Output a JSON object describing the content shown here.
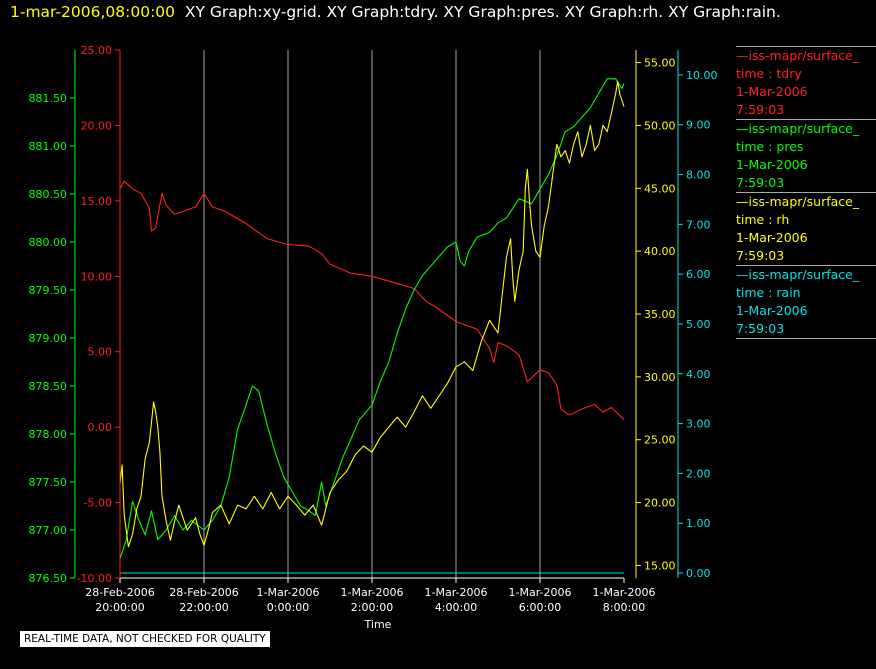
{
  "header": {
    "time": "1-mar-2006,08:00:00",
    "graphs": "XY Graph:xy-grid.  XY Graph:tdry.  XY Graph:pres.  XY Graph:rh.  XY Graph:rain."
  },
  "footnote": "REAL-TIME DATA, NOT CHECKED FOR QUALITY",
  "colors": {
    "tdry": "#ff2020",
    "pres": "#00ff00",
    "rh": "#ffff00",
    "rain": "#00e5e5",
    "grid": "#d0d0d0"
  },
  "legend": [
    {
      "source": "—iss-mapr/surface_",
      "field": "time : tdry",
      "date": "1-Mar-2006",
      "time": "7:59:03"
    },
    {
      "source": "—iss-mapr/surface_",
      "field": "time : pres",
      "date": "1-Mar-2006",
      "time": "7:59:03"
    },
    {
      "source": "—iss-mapr/surface_",
      "field": "time : rh",
      "date": "1-Mar-2006",
      "time": "7:59:03"
    },
    {
      "source": "—iss-mapr/surface_",
      "field": "time : rain",
      "date": "1-Mar-2006",
      "time": "7:59:03"
    }
  ],
  "chart_data": {
    "type": "line",
    "xlabel": "Time",
    "xlim": [
      0,
      12
    ],
    "x_ticks": [
      {
        "v": 0,
        "l1": "28-Feb-2006",
        "l2": "20:00:00"
      },
      {
        "v": 2,
        "l1": "28-Feb-2006",
        "l2": "22:00:00"
      },
      {
        "v": 4,
        "l1": "1-Mar-2006",
        "l2": "0:00:00"
      },
      {
        "v": 6,
        "l1": "1-Mar-2006",
        "l2": "2:00:00"
      },
      {
        "v": 8,
        "l1": "1-Mar-2006",
        "l2": "4:00:00"
      },
      {
        "v": 10,
        "l1": "1-Mar-2006",
        "l2": "6:00:00"
      },
      {
        "v": 12,
        "l1": "1-Mar-2006",
        "l2": "8:00:00"
      }
    ],
    "grid": true,
    "axes": {
      "pres": {
        "range": [
          876.5,
          882.0
        ],
        "ticks": [
          "876.50",
          "877.00",
          "877.50",
          "878.00",
          "878.50",
          "879.00",
          "879.50",
          "880.00",
          "880.50",
          "881.00",
          "881.50"
        ]
      },
      "tdry": {
        "range": [
          -10,
          25
        ],
        "ticks": [
          "-10.00",
          "-5.00",
          "0.00",
          "5.00",
          "10.00",
          "15.00",
          "20.00",
          "25.00"
        ]
      },
      "rh": {
        "range": [
          14,
          56
        ],
        "ticks": [
          "15.00",
          "20.00",
          "25.00",
          "30.00",
          "35.00",
          "40.00",
          "45.00",
          "50.00",
          "55.00"
        ]
      },
      "rain": {
        "range": [
          -0.1,
          10.5
        ],
        "ticks": [
          "0.00",
          "1.00",
          "2.00",
          "3.00",
          "4.00",
          "5.00",
          "6.00",
          "7.00",
          "8.00",
          "9.00",
          "10.00"
        ]
      }
    },
    "series": [
      {
        "key": "tdry",
        "points": [
          [
            0,
            15.8
          ],
          [
            0.1,
            16.3
          ],
          [
            0.3,
            15.8
          ],
          [
            0.5,
            15.5
          ],
          [
            0.7,
            14.5
          ],
          [
            0.75,
            13.0
          ],
          [
            0.85,
            13.2
          ],
          [
            1.0,
            15.5
          ],
          [
            1.1,
            14.7
          ],
          [
            1.3,
            14.1
          ],
          [
            1.5,
            14.3
          ],
          [
            1.8,
            14.6
          ],
          [
            2.0,
            15.5
          ],
          [
            2.2,
            14.6
          ],
          [
            2.5,
            14.3
          ],
          [
            3.0,
            13.5
          ],
          [
            3.5,
            12.5
          ],
          [
            4.0,
            12.1
          ],
          [
            4.5,
            12.0
          ],
          [
            4.8,
            11.5
          ],
          [
            5.0,
            10.8
          ],
          [
            5.5,
            10.2
          ],
          [
            6.0,
            10.0
          ],
          [
            6.5,
            9.6
          ],
          [
            7.0,
            9.2
          ],
          [
            7.3,
            8.3
          ],
          [
            7.5,
            8.0
          ],
          [
            8.0,
            7.0
          ],
          [
            8.5,
            6.5
          ],
          [
            8.8,
            5.2
          ],
          [
            8.9,
            4.3
          ],
          [
            9.0,
            5.6
          ],
          [
            9.2,
            5.4
          ],
          [
            9.5,
            4.8
          ],
          [
            9.7,
            3.0
          ],
          [
            10.0,
            3.8
          ],
          [
            10.2,
            3.6
          ],
          [
            10.4,
            2.8
          ],
          [
            10.5,
            1.2
          ],
          [
            10.7,
            0.8
          ],
          [
            11.0,
            1.2
          ],
          [
            11.3,
            1.5
          ],
          [
            11.5,
            1.0
          ],
          [
            11.7,
            1.3
          ],
          [
            12.0,
            0.5
          ]
        ]
      },
      {
        "key": "pres",
        "points": [
          [
            0,
            876.7
          ],
          [
            0.15,
            876.9
          ],
          [
            0.3,
            877.3
          ],
          [
            0.45,
            877.1
          ],
          [
            0.6,
            876.95
          ],
          [
            0.75,
            877.2
          ],
          [
            0.9,
            876.9
          ],
          [
            1.1,
            877.0
          ],
          [
            1.3,
            877.15
          ],
          [
            1.5,
            877.0
          ],
          [
            1.7,
            877.1
          ],
          [
            2.0,
            877.0
          ],
          [
            2.2,
            877.1
          ],
          [
            2.4,
            877.25
          ],
          [
            2.6,
            877.55
          ],
          [
            2.8,
            878.05
          ],
          [
            3.0,
            878.3
          ],
          [
            3.15,
            878.5
          ],
          [
            3.3,
            878.45
          ],
          [
            3.5,
            878.1
          ],
          [
            3.7,
            877.8
          ],
          [
            3.9,
            877.55
          ],
          [
            4.1,
            877.4
          ],
          [
            4.3,
            877.25
          ],
          [
            4.5,
            877.2
          ],
          [
            4.65,
            877.15
          ],
          [
            4.8,
            877.5
          ],
          [
            4.9,
            877.25
          ],
          [
            5.1,
            877.5
          ],
          [
            5.3,
            877.75
          ],
          [
            5.5,
            877.95
          ],
          [
            5.7,
            878.15
          ],
          [
            6.0,
            878.3
          ],
          [
            6.2,
            878.55
          ],
          [
            6.4,
            878.75
          ],
          [
            6.6,
            879.05
          ],
          [
            6.8,
            879.3
          ],
          [
            7.0,
            879.5
          ],
          [
            7.2,
            879.65
          ],
          [
            7.5,
            879.8
          ],
          [
            7.8,
            879.95
          ],
          [
            8.0,
            880.0
          ],
          [
            8.1,
            879.8
          ],
          [
            8.2,
            879.75
          ],
          [
            8.3,
            879.9
          ],
          [
            8.5,
            880.05
          ],
          [
            8.8,
            880.1
          ],
          [
            9.0,
            880.2
          ],
          [
            9.2,
            880.25
          ],
          [
            9.5,
            880.45
          ],
          [
            9.8,
            880.4
          ],
          [
            10.0,
            880.55
          ],
          [
            10.2,
            880.7
          ],
          [
            10.4,
            880.9
          ],
          [
            10.6,
            881.15
          ],
          [
            10.8,
            881.2
          ],
          [
            11.0,
            881.3
          ],
          [
            11.2,
            881.4
          ],
          [
            11.4,
            881.55
          ],
          [
            11.6,
            881.7
          ],
          [
            11.8,
            881.7
          ],
          [
            11.95,
            881.6
          ],
          [
            12.0,
            881.65
          ]
        ]
      },
      {
        "key": "rh",
        "points": [
          [
            0,
            21.5
          ],
          [
            0.05,
            23.0
          ],
          [
            0.1,
            19.0
          ],
          [
            0.2,
            16.5
          ],
          [
            0.3,
            17.5
          ],
          [
            0.4,
            19.5
          ],
          [
            0.5,
            20.5
          ],
          [
            0.6,
            23.5
          ],
          [
            0.7,
            24.8
          ],
          [
            0.8,
            28.0
          ],
          [
            0.85,
            27.2
          ],
          [
            0.9,
            26.0
          ],
          [
            0.95,
            24.0
          ],
          [
            1.0,
            20.5
          ],
          [
            1.1,
            18.5
          ],
          [
            1.2,
            17.0
          ],
          [
            1.3,
            18.5
          ],
          [
            1.4,
            19.8
          ],
          [
            1.5,
            18.8
          ],
          [
            1.6,
            17.8
          ],
          [
            1.8,
            18.8
          ],
          [
            1.9,
            17.5
          ],
          [
            2.0,
            16.6
          ],
          [
            2.1,
            17.8
          ],
          [
            2.2,
            19.2
          ],
          [
            2.4,
            19.8
          ],
          [
            2.6,
            18.3
          ],
          [
            2.8,
            19.8
          ],
          [
            3.0,
            19.5
          ],
          [
            3.2,
            20.5
          ],
          [
            3.4,
            19.5
          ],
          [
            3.6,
            20.8
          ],
          [
            3.8,
            19.5
          ],
          [
            4.0,
            20.5
          ],
          [
            4.2,
            19.8
          ],
          [
            4.4,
            19.0
          ],
          [
            4.6,
            19.8
          ],
          [
            4.8,
            18.2
          ],
          [
            5.0,
            20.8
          ],
          [
            5.2,
            21.8
          ],
          [
            5.4,
            22.5
          ],
          [
            5.6,
            23.8
          ],
          [
            5.8,
            24.5
          ],
          [
            6.0,
            24.0
          ],
          [
            6.2,
            25.2
          ],
          [
            6.4,
            26.0
          ],
          [
            6.6,
            26.8
          ],
          [
            6.8,
            26.0
          ],
          [
            7.0,
            27.2
          ],
          [
            7.2,
            28.5
          ],
          [
            7.4,
            27.5
          ],
          [
            7.6,
            28.5
          ],
          [
            7.8,
            29.5
          ],
          [
            8.0,
            30.8
          ],
          [
            8.2,
            31.2
          ],
          [
            8.4,
            30.5
          ],
          [
            8.6,
            32.8
          ],
          [
            8.8,
            34.5
          ],
          [
            9.0,
            33.5
          ],
          [
            9.1,
            36.5
          ],
          [
            9.2,
            39.5
          ],
          [
            9.3,
            41.0
          ],
          [
            9.35,
            38.0
          ],
          [
            9.4,
            36.0
          ],
          [
            9.5,
            38.5
          ],
          [
            9.6,
            40.0
          ],
          [
            9.65,
            45.0
          ],
          [
            9.7,
            46.5
          ],
          [
            9.75,
            44.0
          ],
          [
            9.8,
            42.0
          ],
          [
            9.9,
            40.0
          ],
          [
            10.0,
            39.5
          ],
          [
            10.1,
            42.0
          ],
          [
            10.2,
            43.5
          ],
          [
            10.3,
            46.0
          ],
          [
            10.4,
            48.5
          ],
          [
            10.5,
            47.5
          ],
          [
            10.6,
            48.0
          ],
          [
            10.7,
            47.0
          ],
          [
            10.8,
            48.5
          ],
          [
            10.9,
            49.5
          ],
          [
            11.0,
            47.5
          ],
          [
            11.1,
            48.5
          ],
          [
            11.2,
            50.0
          ],
          [
            11.3,
            48.0
          ],
          [
            11.4,
            48.5
          ],
          [
            11.5,
            50.0
          ],
          [
            11.6,
            49.5
          ],
          [
            11.7,
            51.0
          ],
          [
            11.8,
            52.5
          ],
          [
            11.85,
            53.5
          ],
          [
            11.9,
            52.5
          ],
          [
            12.0,
            51.5
          ]
        ]
      },
      {
        "key": "rain",
        "points": [
          [
            0,
            0.0
          ],
          [
            12,
            0.0
          ]
        ]
      }
    ]
  }
}
